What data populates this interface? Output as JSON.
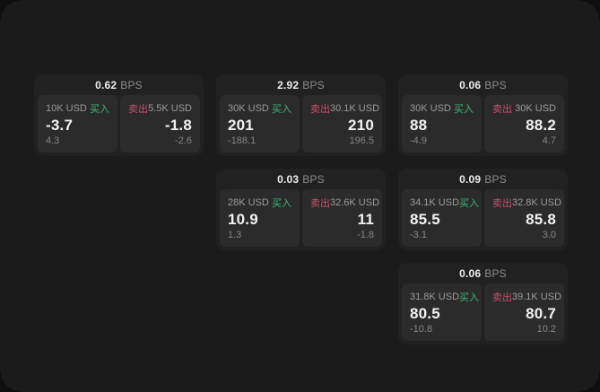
{
  "labels": {
    "bps_suffix": "BPS",
    "buy": "买入",
    "sell": "卖出"
  },
  "colors": {
    "buy_green": "#3eb575",
    "sell_red": "#c8506a",
    "window_bg": "#1b1b1b",
    "card_bg": "#212121",
    "panel_bg": "#2b2b2b",
    "primary_text": "#f2f2f2",
    "muted_text": "#8b8b8b"
  },
  "cards": [
    {
      "bps": "0.62",
      "row": 1,
      "col": 1,
      "buy": {
        "amount": "10K USD",
        "value": "-3.7",
        "delta": "4.3"
      },
      "sell": {
        "amount": "5.5K USD",
        "value": "-1.8",
        "delta": "-2.6"
      }
    },
    {
      "bps": "2.92",
      "row": 1,
      "col": 2,
      "buy": {
        "amount": "30K USD",
        "value": "201",
        "delta": "-188.1"
      },
      "sell": {
        "amount": "30.1K USD",
        "value": "210",
        "delta": "196.5"
      }
    },
    {
      "bps": "0.06",
      "row": 1,
      "col": 3,
      "buy": {
        "amount": "30K USD",
        "value": "88",
        "delta": "-4.9"
      },
      "sell": {
        "amount": "30K USD",
        "value": "88.2",
        "delta": "4.7"
      }
    },
    {
      "bps": "0.03",
      "row": 2,
      "col": 2,
      "buy": {
        "amount": "28K USD",
        "value": "10.9",
        "delta": "1.3"
      },
      "sell": {
        "amount": "32.6K USD",
        "value": "11",
        "delta": "-1.8"
      }
    },
    {
      "bps": "0.09",
      "row": 2,
      "col": 3,
      "buy": {
        "amount": "34.1K USD",
        "value": "85.5",
        "delta": "-3.1"
      },
      "sell": {
        "amount": "32.8K USD",
        "value": "85.8",
        "delta": "3.0"
      }
    },
    {
      "bps": "0.06",
      "row": 3,
      "col": 3,
      "buy": {
        "amount": "31.8K USD",
        "value": "80.5",
        "delta": "-10.8"
      },
      "sell": {
        "amount": "39.1K USD",
        "value": "80.7",
        "delta": "10.2"
      }
    }
  ]
}
